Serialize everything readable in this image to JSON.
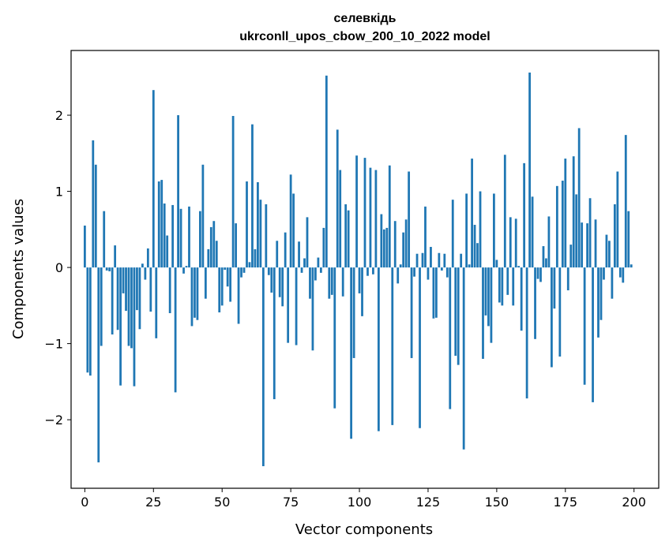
{
  "chart_data": {
    "type": "bar",
    "title": "селевкідь",
    "subtitle": "ukrconll_upos_cbow_200_10_2022 model",
    "xlabel": "Vector components",
    "ylabel": "Components values",
    "xlim": [
      -5,
      209
    ],
    "ylim": [
      -2.9,
      2.85
    ],
    "xticks": [
      0,
      25,
      50,
      75,
      100,
      125,
      150,
      175,
      200
    ],
    "xtick_labels": [
      "0",
      "25",
      "50",
      "75",
      "100",
      "125",
      "150",
      "175",
      "200"
    ],
    "yticks": [
      -2,
      -1,
      0,
      1,
      2
    ],
    "ytick_labels": [
      "−2",
      "−1",
      "0",
      "1",
      "2"
    ],
    "grid": false,
    "bar_color": "#1f77b4",
    "x": [
      0,
      1,
      2,
      3,
      4,
      5,
      6,
      7,
      8,
      9,
      10,
      11,
      12,
      13,
      14,
      15,
      16,
      17,
      18,
      19,
      20,
      21,
      22,
      23,
      24,
      25,
      26,
      27,
      28,
      29,
      30,
      31,
      32,
      33,
      34,
      35,
      36,
      37,
      38,
      39,
      40,
      41,
      42,
      43,
      44,
      45,
      46,
      47,
      48,
      49,
      50,
      51,
      52,
      53,
      54,
      55,
      56,
      57,
      58,
      59,
      60,
      61,
      62,
      63,
      64,
      65,
      66,
      67,
      68,
      69,
      70,
      71,
      72,
      73,
      74,
      75,
      76,
      77,
      78,
      79,
      80,
      81,
      82,
      83,
      84,
      85,
      86,
      87,
      88,
      89,
      90,
      91,
      92,
      93,
      94,
      95,
      96,
      97,
      98,
      99,
      100,
      101,
      102,
      103,
      104,
      105,
      106,
      107,
      108,
      109,
      110,
      111,
      112,
      113,
      114,
      115,
      116,
      117,
      118,
      119,
      120,
      121,
      122,
      123,
      124,
      125,
      126,
      127,
      128,
      129,
      130,
      131,
      132,
      133,
      134,
      135,
      136,
      137,
      138,
      139,
      140,
      141,
      142,
      143,
      144,
      145,
      146,
      147,
      148,
      149,
      150,
      151,
      152,
      153,
      154,
      155,
      156,
      157,
      158,
      159,
      160,
      161,
      162,
      163,
      164,
      165,
      166,
      167,
      168,
      169,
      170,
      171,
      172,
      173,
      174,
      175,
      176,
      177,
      178,
      179,
      180,
      181,
      182,
      183,
      184,
      185,
      186,
      187,
      188,
      189,
      190,
      191,
      192,
      193,
      194,
      195,
      196,
      197,
      198,
      199
    ],
    "values": [
      0.55,
      -1.38,
      -1.42,
      1.67,
      1.35,
      -2.56,
      -1.03,
      0.74,
      -0.04,
      -0.05,
      -0.88,
      0.29,
      -0.82,
      -1.55,
      -0.34,
      -0.57,
      -1.03,
      -1.06,
      -1.56,
      -0.56,
      -0.81,
      0.05,
      -0.16,
      0.25,
      -0.58,
      2.33,
      -0.93,
      1.13,
      1.15,
      0.84,
      0.42,
      -0.6,
      0.82,
      -1.64,
      2.0,
      0.77,
      -0.08,
      0.02,
      0.8,
      -0.77,
      -0.66,
      -0.69,
      0.74,
      1.35,
      -0.41,
      0.24,
      0.53,
      0.61,
      0.35,
      -0.59,
      -0.5,
      -0.03,
      -0.25,
      -0.45,
      1.99,
      0.58,
      -0.74,
      -0.13,
      -0.07,
      1.13,
      0.07,
      1.88,
      0.24,
      1.12,
      0.89,
      -2.61,
      0.83,
      -0.1,
      -0.33,
      -1.73,
      0.35,
      -0.39,
      -0.51,
      0.46,
      -0.99,
      1.22,
      0.97,
      -1.02,
      0.34,
      -0.07,
      0.12,
      0.66,
      -0.41,
      -1.09,
      -0.17,
      0.13,
      -0.07,
      0.52,
      2.52,
      -0.41,
      -0.36,
      -1.85,
      1.81,
      1.28,
      -0.38,
      0.83,
      0.75,
      -2.25,
      -1.19,
      1.47,
      -0.34,
      -0.64,
      1.44,
      -0.11,
      1.31,
      -0.09,
      1.28,
      -2.15,
      0.7,
      0.5,
      0.52,
      1.34,
      -2.07,
      0.61,
      -0.21,
      0.04,
      0.46,
      0.63,
      1.26,
      -1.19,
      -0.12,
      0.18,
      -2.11,
      0.19,
      0.8,
      -0.16,
      0.27,
      -0.67,
      -0.66,
      0.19,
      -0.04,
      0.18,
      -0.13,
      -1.86,
      0.89,
      -1.16,
      -1.28,
      0.18,
      -2.39,
      0.97,
      0.04,
      1.43,
      0.56,
      0.32,
      1.0,
      -1.2,
      -0.63,
      -0.77,
      -0.99,
      0.97,
      0.1,
      -0.46,
      -0.5,
      1.48,
      -0.36,
      0.66,
      -0.5,
      0.64,
      0.02,
      -0.83,
      1.37,
      -1.72,
      2.56,
      0.93,
      -0.94,
      -0.15,
      -0.19,
      0.28,
      0.12,
      0.67,
      -1.31,
      -0.54,
      1.07,
      -1.17,
      1.14,
      1.43,
      -0.3,
      0.3,
      1.46,
      0.96,
      1.83,
      0.59,
      -1.54,
      0.58,
      0.91,
      -1.77,
      0.63,
      -0.92,
      -0.69,
      -0.16,
      0.43,
      0.35,
      -0.41,
      0.83,
      1.26,
      -0.13,
      -0.2,
      1.74,
      0.74,
      0.04
    ]
  }
}
